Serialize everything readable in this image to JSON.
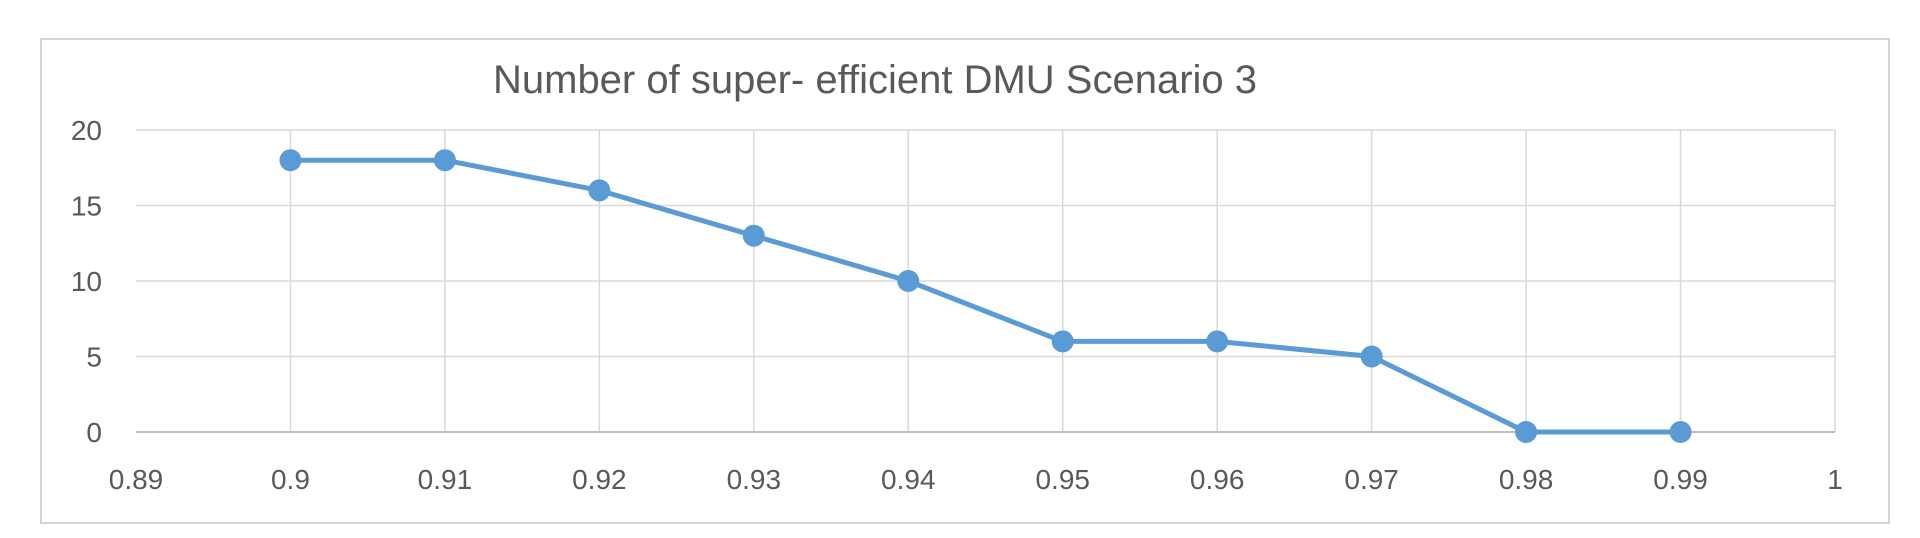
{
  "chart_data": {
    "type": "line",
    "title": "Number of super- efficient DMU Scenario 3",
    "xlabel": "",
    "ylabel": "",
    "x": [
      0.9,
      0.91,
      0.92,
      0.93,
      0.94,
      0.95,
      0.96,
      0.97,
      0.98,
      0.99
    ],
    "series": [
      {
        "values": [
          18,
          18,
          16,
          13,
          10,
          6,
          6,
          5,
          0,
          0
        ]
      }
    ],
    "xlim": [
      0.89,
      1
    ],
    "ylim": [
      0,
      20
    ],
    "x_ticks": [
      "0.89",
      "0.9",
      "0.91",
      "0.92",
      "0.93",
      "0.94",
      "0.95",
      "0.96",
      "0.97",
      "0.98",
      "0.99",
      "1"
    ],
    "y_ticks": [
      "0",
      "5",
      "10",
      "15",
      "20"
    ],
    "grid": "vertical and horizontal major gridlines",
    "legend": "none",
    "colors": {
      "series": "#5b9bd5",
      "grid": "#d9d9d9",
      "axis": "#bfbfbf",
      "text": "#595959"
    }
  }
}
